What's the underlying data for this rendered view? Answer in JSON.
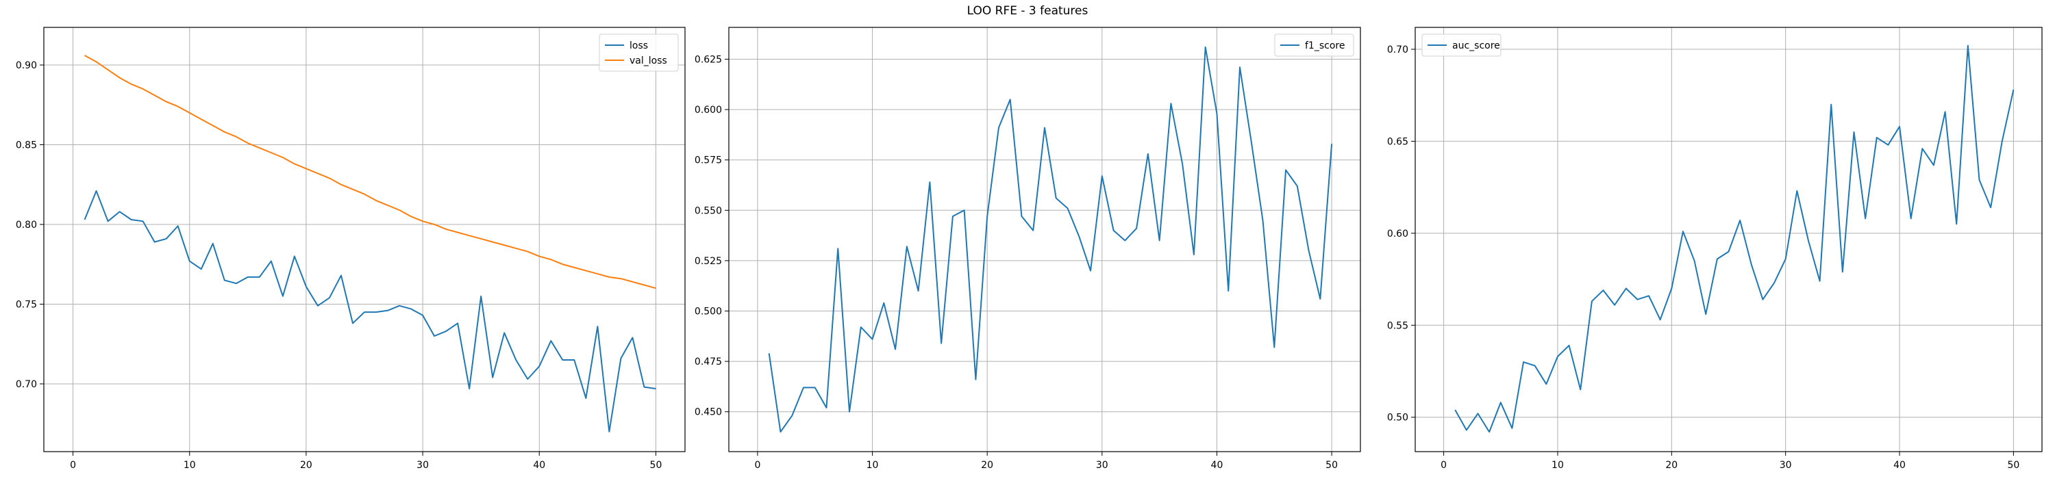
{
  "figure": {
    "title": "LOO RFE - 3 features"
  },
  "colors": {
    "blue": "#1f77b4",
    "orange": "#ff7f0e",
    "grid": "#b0b0b0",
    "axis": "#000000"
  },
  "chart_data": [
    {
      "type": "line",
      "title": "",
      "xlabel": "",
      "ylabel": "",
      "xlim": [
        -2.5,
        52.5
      ],
      "ylim": [
        0.6575,
        0.9236
      ],
      "xticks": [
        0,
        10,
        20,
        30,
        40,
        50
      ],
      "xtick_labels": [
        "0",
        "10",
        "20",
        "30",
        "40",
        "50"
      ],
      "yticks": [
        0.7,
        0.75,
        0.8,
        0.85,
        0.9
      ],
      "ytick_labels": [
        "0.70",
        "0.75",
        "0.80",
        "0.85",
        "0.90"
      ],
      "grid": true,
      "legend_position": "top-right",
      "x": [
        1,
        2,
        3,
        4,
        5,
        6,
        7,
        8,
        9,
        10,
        11,
        12,
        13,
        14,
        15,
        16,
        17,
        18,
        19,
        20,
        21,
        22,
        23,
        24,
        25,
        26,
        27,
        28,
        29,
        30,
        31,
        32,
        33,
        34,
        35,
        36,
        37,
        38,
        39,
        40,
        41,
        42,
        43,
        44,
        45,
        46,
        47,
        48,
        49,
        50
      ],
      "series": [
        {
          "name": "loss",
          "color": "#1f77b4",
          "values": [
            0.803,
            0.821,
            0.802,
            0.808,
            0.803,
            0.802,
            0.789,
            0.791,
            0.799,
            0.777,
            0.772,
            0.788,
            0.765,
            0.763,
            0.767,
            0.767,
            0.777,
            0.755,
            0.78,
            0.761,
            0.749,
            0.754,
            0.768,
            0.738,
            0.745,
            0.745,
            0.746,
            0.749,
            0.747,
            0.743,
            0.73,
            0.733,
            0.738,
            0.697,
            0.755,
            0.704,
            0.732,
            0.715,
            0.703,
            0.711,
            0.727,
            0.715,
            0.715,
            0.691,
            0.736,
            0.67,
            0.716,
            0.729,
            0.698,
            0.697
          ]
        },
        {
          "name": "val_loss",
          "color": "#ff7f0e",
          "values": [
            0.906,
            0.902,
            0.897,
            0.892,
            0.888,
            0.885,
            0.881,
            0.877,
            0.874,
            0.87,
            0.866,
            0.862,
            0.858,
            0.855,
            0.851,
            0.848,
            0.845,
            0.842,
            0.838,
            0.835,
            0.832,
            0.829,
            0.825,
            0.822,
            0.819,
            0.815,
            0.812,
            0.809,
            0.805,
            0.802,
            0.8,
            0.797,
            0.795,
            0.793,
            0.791,
            0.789,
            0.787,
            0.785,
            0.783,
            0.78,
            0.778,
            0.775,
            0.773,
            0.771,
            0.769,
            0.767,
            0.766,
            0.764,
            0.762,
            0.76
          ]
        }
      ]
    },
    {
      "type": "line",
      "title": "",
      "xlabel": "",
      "ylabel": "",
      "xlim": [
        -2.5,
        52.5
      ],
      "ylim": [
        0.4302,
        0.6408
      ],
      "xticks": [
        0,
        10,
        20,
        30,
        40,
        50
      ],
      "xtick_labels": [
        "0",
        "10",
        "20",
        "30",
        "40",
        "50"
      ],
      "yticks": [
        0.45,
        0.475,
        0.5,
        0.525,
        0.55,
        0.575,
        0.6,
        0.625
      ],
      "ytick_labels": [
        "0.450",
        "0.475",
        "0.500",
        "0.525",
        "0.550",
        "0.575",
        "0.600",
        "0.625"
      ],
      "grid": true,
      "legend_position": "top-right",
      "x": [
        1,
        2,
        3,
        4,
        5,
        6,
        7,
        8,
        9,
        10,
        11,
        12,
        13,
        14,
        15,
        16,
        17,
        18,
        19,
        20,
        21,
        22,
        23,
        24,
        25,
        26,
        27,
        28,
        29,
        30,
        31,
        32,
        33,
        34,
        35,
        36,
        37,
        38,
        39,
        40,
        41,
        42,
        43,
        44,
        45,
        46,
        47,
        48,
        49,
        50
      ],
      "series": [
        {
          "name": "f1_score",
          "color": "#1f77b4",
          "values": [
            0.479,
            0.44,
            0.448,
            0.462,
            0.462,
            0.452,
            0.531,
            0.45,
            0.492,
            0.486,
            0.504,
            0.481,
            0.532,
            0.51,
            0.564,
            0.484,
            0.547,
            0.55,
            0.466,
            0.547,
            0.591,
            0.605,
            0.547,
            0.54,
            0.591,
            0.556,
            0.551,
            0.537,
            0.52,
            0.567,
            0.54,
            0.535,
            0.541,
            0.578,
            0.535,
            0.603,
            0.573,
            0.528,
            0.631,
            0.598,
            0.51,
            0.621,
            0.584,
            0.545,
            0.482,
            0.57,
            0.562,
            0.53,
            0.506,
            0.583
          ]
        }
      ]
    },
    {
      "type": "line",
      "title": "",
      "xlabel": "",
      "ylabel": "",
      "xlim": [
        -2.5,
        52.5
      ],
      "ylim": [
        0.4813,
        0.7119
      ],
      "xticks": [
        0,
        10,
        20,
        30,
        40,
        50
      ],
      "xtick_labels": [
        "0",
        "10",
        "20",
        "30",
        "40",
        "50"
      ],
      "yticks": [
        0.5,
        0.55,
        0.6,
        0.65,
        0.7
      ],
      "ytick_labels": [
        "0.50",
        "0.55",
        "0.60",
        "0.65",
        "0.70"
      ],
      "grid": true,
      "legend_position": "top-left",
      "x": [
        1,
        2,
        3,
        4,
        5,
        6,
        7,
        8,
        9,
        10,
        11,
        12,
        13,
        14,
        15,
        16,
        17,
        18,
        19,
        20,
        21,
        22,
        23,
        24,
        25,
        26,
        27,
        28,
        29,
        30,
        31,
        32,
        33,
        34,
        35,
        36,
        37,
        38,
        39,
        40,
        41,
        42,
        43,
        44,
        45,
        46,
        47,
        48,
        49,
        50
      ],
      "series": [
        {
          "name": "auc_score",
          "color": "#1f77b4",
          "values": [
            0.504,
            0.493,
            0.502,
            0.492,
            0.508,
            0.494,
            0.53,
            0.528,
            0.518,
            0.533,
            0.539,
            0.515,
            0.563,
            0.569,
            0.561,
            0.57,
            0.564,
            0.566,
            0.553,
            0.57,
            0.601,
            0.585,
            0.556,
            0.586,
            0.59,
            0.607,
            0.583,
            0.564,
            0.573,
            0.586,
            0.623,
            0.596,
            0.574,
            0.67,
            0.579,
            0.655,
            0.608,
            0.652,
            0.648,
            0.658,
            0.608,
            0.646,
            0.637,
            0.666,
            0.605,
            0.702,
            0.629,
            0.614,
            0.65,
            0.678
          ]
        }
      ]
    }
  ]
}
